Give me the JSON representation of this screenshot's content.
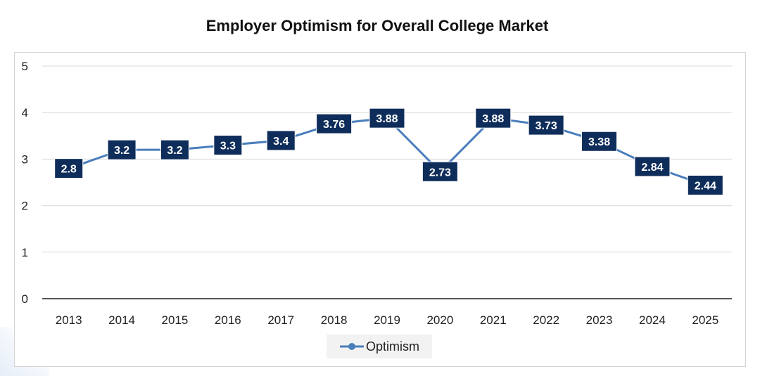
{
  "chart_data": {
    "type": "line",
    "title": "Employer Optimism for Overall College Market",
    "xlabel": "",
    "ylabel": "",
    "categories": [
      "2013",
      "2014",
      "2015",
      "2016",
      "2017",
      "2018",
      "2019",
      "2020",
      "2021",
      "2022",
      "2023",
      "2024",
      "2025"
    ],
    "series": [
      {
        "name": "Optimism",
        "values": [
          2.8,
          3.2,
          3.2,
          3.3,
          3.4,
          3.76,
          3.88,
          2.73,
          3.88,
          3.73,
          3.38,
          2.84,
          2.44
        ],
        "labels": [
          "2.8",
          "3.2",
          "3.2",
          "3.3",
          "3.4",
          "3.76",
          "3.88",
          "2.73",
          "3.88",
          "3.73",
          "3.38",
          "2.84",
          "2.44"
        ]
      }
    ],
    "ylim": [
      0,
      5
    ],
    "yticks": [
      "0",
      "1",
      "2",
      "3",
      "4",
      "5"
    ],
    "grid": true,
    "legend_position": "bottom",
    "colors": {
      "line": "#4a7ebb",
      "label_bg": "#0f2d5a",
      "label_text": "#ffffff",
      "grid": "#d9d9d9",
      "axis": "#595959"
    }
  }
}
